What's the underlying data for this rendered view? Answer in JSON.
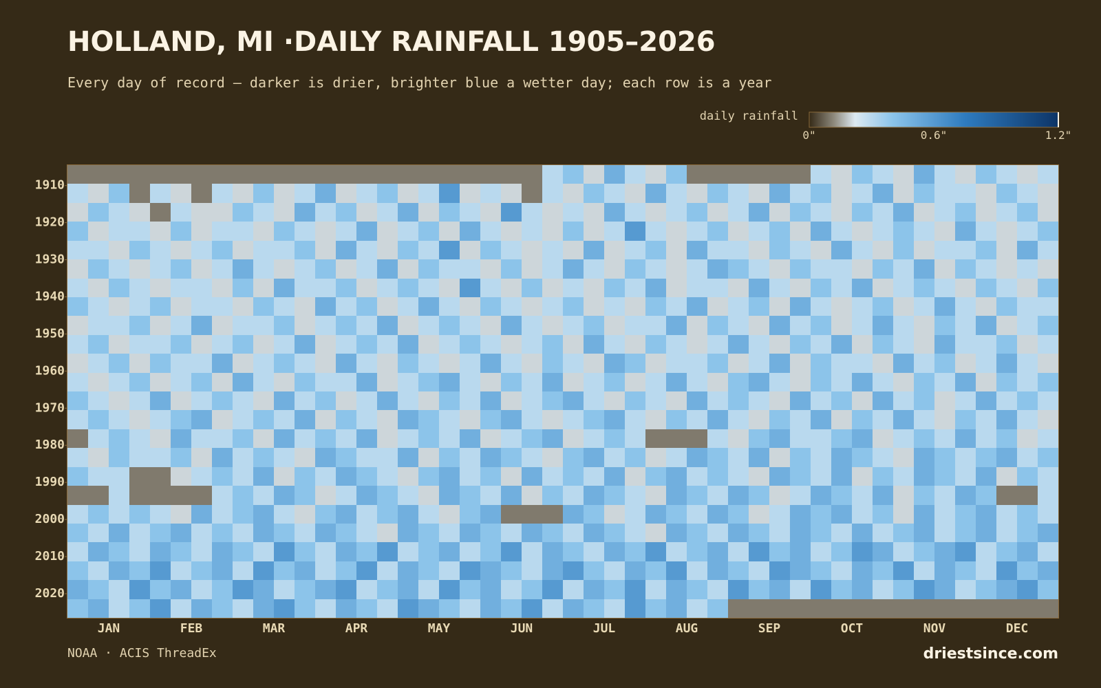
{
  "chart_data": {
    "type": "heatmap",
    "title": "HOLLAND, MI ·DAILY RAINFALL 1905–2026",
    "subtitle": "Every day of record — darker is drier, brighter blue a wetter day; each row is a year",
    "legend_title": "daily rainfall",
    "source": "NOAA · ACIS ThreadEx",
    "credit": "driestsince.com",
    "categories": [
      "JAN",
      "FEB",
      "MAR",
      "APR",
      "MAY",
      "JUN",
      "JUL",
      "AUG",
      "SEP",
      "OCT",
      "NOV",
      "DEC"
    ],
    "ylim": [
      1904.5,
      2026.5
    ],
    "y_inverted": true,
    "yticks": [
      1910,
      1920,
      1930,
      1940,
      1950,
      1960,
      1970,
      1980,
      1990,
      2000,
      2010,
      2020
    ],
    "zlim": [
      0,
      1.2
    ],
    "zticks": [
      {
        "value": 0,
        "label": "0\""
      },
      {
        "value": 0.6,
        "label": "0.6\""
      },
      {
        "value": 1.2,
        "label": "1.2\""
      }
    ],
    "colorscale": [
      [
        0,
        "#352a17"
      ],
      [
        0.12,
        "#8f8a7e"
      ],
      [
        0.22,
        "#dde9f1"
      ],
      [
        0.4,
        "#8cc4ea"
      ],
      [
        0.75,
        "#2e7bbf"
      ],
      [
        1.2,
        "#0d3466"
      ]
    ],
    "background": "#352a17",
    "z": [
      [
        0.1,
        0.1,
        0.1,
        0.1,
        0.1,
        0.1,
        0.1,
        0.1,
        0.1,
        0.1,
        0.1,
        0.1,
        0.1,
        0.1,
        0.1,
        0.1,
        0.1,
        0.1,
        0.1,
        0.1,
        0.1,
        0.1,
        0.1,
        0.3,
        0.4,
        0.2,
        0.5,
        0.3,
        0.2,
        0.4,
        0.1,
        0.1,
        0.1,
        0.1,
        0.1,
        0.1,
        0.3,
        0.2,
        0.4,
        0.3,
        0.2,
        0.5,
        0.3,
        0.2,
        0.4,
        0.3,
        0.2,
        0.3
      ],
      [
        0.3,
        0.2,
        0.4,
        0.1,
        0.3,
        0.2,
        0.1,
        0.3,
        0.2,
        0.4,
        0.2,
        0.3,
        0.5,
        0.2,
        0.3,
        0.4,
        0.2,
        0.3,
        0.6,
        0.2,
        0.3,
        0.2,
        0.1,
        0.3,
        0.2,
        0.4,
        0.3,
        0.2,
        0.5,
        0.3,
        0.2,
        0.4,
        0.3,
        0.2,
        0.5,
        0.3,
        0.4,
        0.2,
        0.3,
        0.5,
        0.2,
        0.4,
        0.3,
        0.3,
        0.2,
        0.4,
        0.3,
        0.2
      ],
      [
        0.2,
        0.4,
        0.3,
        0.2,
        0.1,
        0.3,
        0.2,
        0.2,
        0.4,
        0.3,
        0.2,
        0.5,
        0.3,
        0.4,
        0.2,
        0.3,
        0.5,
        0.2,
        0.4,
        0.3,
        0.2,
        0.6,
        0.3,
        0.2,
        0.3,
        0.2,
        0.5,
        0.3,
        0.2,
        0.3,
        0.4,
        0.2,
        0.3,
        0.5,
        0.2,
        0.4,
        0.3,
        0.2,
        0.4,
        0.3,
        0.5,
        0.2,
        0.3,
        0.4,
        0.2,
        0.3,
        0.4,
        0.2
      ],
      [
        0.4,
        0.2,
        0.3,
        0.3,
        0.2,
        0.4,
        0.2,
        0.3,
        0.3,
        0.2,
        0.4,
        0.3,
        0.2,
        0.3,
        0.5,
        0.2,
        0.3,
        0.4,
        0.2,
        0.5,
        0.3,
        0.2,
        0.3,
        0.2,
        0.4,
        0.2,
        0.3,
        0.6,
        0.3,
        0.2,
        0.3,
        0.4,
        0.2,
        0.3,
        0.4,
        0.2,
        0.5,
        0.3,
        0.2,
        0.3,
        0.4,
        0.3,
        0.2,
        0.5,
        0.3,
        0.2,
        0.3,
        0.4
      ],
      [
        0.3,
        0.3,
        0.2,
        0.4,
        0.3,
        0.2,
        0.3,
        0.4,
        0.2,
        0.3,
        0.3,
        0.4,
        0.2,
        0.5,
        0.3,
        0.2,
        0.4,
        0.3,
        0.6,
        0.2,
        0.4,
        0.3,
        0.2,
        0.3,
        0.2,
        0.5,
        0.2,
        0.3,
        0.4,
        0.2,
        0.5,
        0.3,
        0.3,
        0.2,
        0.4,
        0.3,
        0.2,
        0.5,
        0.3,
        0.2,
        0.4,
        0.2,
        0.3,
        0.3,
        0.4,
        0.2,
        0.5,
        0.3
      ],
      [
        0.2,
        0.4,
        0.3,
        0.2,
        0.3,
        0.4,
        0.2,
        0.3,
        0.5,
        0.3,
        0.2,
        0.3,
        0.4,
        0.2,
        0.3,
        0.5,
        0.2,
        0.4,
        0.3,
        0.3,
        0.2,
        0.4,
        0.2,
        0.3,
        0.5,
        0.3,
        0.2,
        0.4,
        0.3,
        0.2,
        0.3,
        0.5,
        0.4,
        0.3,
        0.2,
        0.4,
        0.3,
        0.3,
        0.2,
        0.4,
        0.3,
        0.5,
        0.2,
        0.4,
        0.3,
        0.2,
        0.3,
        0.2
      ],
      [
        0.3,
        0.2,
        0.4,
        0.3,
        0.2,
        0.3,
        0.3,
        0.2,
        0.4,
        0.2,
        0.5,
        0.3,
        0.3,
        0.4,
        0.2,
        0.3,
        0.4,
        0.3,
        0.2,
        0.6,
        0.3,
        0.2,
        0.4,
        0.2,
        0.3,
        0.2,
        0.4,
        0.3,
        0.5,
        0.2,
        0.3,
        0.3,
        0.2,
        0.5,
        0.3,
        0.2,
        0.4,
        0.3,
        0.5,
        0.2,
        0.3,
        0.4,
        0.3,
        0.2,
        0.4,
        0.3,
        0.2,
        0.4
      ],
      [
        0.4,
        0.3,
        0.2,
        0.3,
        0.4,
        0.2,
        0.3,
        0.3,
        0.2,
        0.4,
        0.3,
        0.2,
        0.5,
        0.3,
        0.4,
        0.2,
        0.3,
        0.5,
        0.3,
        0.2,
        0.4,
        0.3,
        0.2,
        0.3,
        0.4,
        0.2,
        0.3,
        0.2,
        0.4,
        0.3,
        0.5,
        0.2,
        0.3,
        0.4,
        0.2,
        0.5,
        0.3,
        0.2,
        0.3,
        0.4,
        0.2,
        0.3,
        0.5,
        0.3,
        0.2,
        0.4,
        0.3,
        0.3
      ],
      [
        0.2,
        0.3,
        0.3,
        0.4,
        0.2,
        0.3,
        0.5,
        0.2,
        0.3,
        0.3,
        0.4,
        0.2,
        0.3,
        0.4,
        0.3,
        0.5,
        0.2,
        0.3,
        0.4,
        0.3,
        0.2,
        0.5,
        0.3,
        0.2,
        0.3,
        0.4,
        0.2,
        0.3,
        0.3,
        0.5,
        0.2,
        0.4,
        0.3,
        0.2,
        0.5,
        0.3,
        0.4,
        0.2,
        0.3,
        0.5,
        0.3,
        0.2,
        0.4,
        0.3,
        0.5,
        0.2,
        0.3,
        0.4
      ],
      [
        0.3,
        0.4,
        0.2,
        0.3,
        0.3,
        0.4,
        0.2,
        0.3,
        0.4,
        0.2,
        0.3,
        0.5,
        0.2,
        0.3,
        0.4,
        0.3,
        0.5,
        0.2,
        0.3,
        0.4,
        0.3,
        0.2,
        0.3,
        0.4,
        0.2,
        0.5,
        0.3,
        0.2,
        0.4,
        0.3,
        0.2,
        0.3,
        0.5,
        0.3,
        0.2,
        0.4,
        0.3,
        0.5,
        0.2,
        0.4,
        0.3,
        0.2,
        0.5,
        0.3,
        0.3,
        0.4,
        0.2,
        0.3
      ],
      [
        0.2,
        0.3,
        0.4,
        0.2,
        0.4,
        0.3,
        0.3,
        0.5,
        0.2,
        0.3,
        0.4,
        0.3,
        0.2,
        0.5,
        0.3,
        0.2,
        0.4,
        0.3,
        0.2,
        0.3,
        0.5,
        0.3,
        0.2,
        0.4,
        0.3,
        0.2,
        0.5,
        0.4,
        0.2,
        0.3,
        0.3,
        0.4,
        0.2,
        0.3,
        0.5,
        0.2,
        0.4,
        0.3,
        0.3,
        0.2,
        0.5,
        0.3,
        0.4,
        0.2,
        0.3,
        0.5,
        0.3,
        0.2
      ],
      [
        0.3,
        0.2,
        0.3,
        0.4,
        0.2,
        0.3,
        0.4,
        0.2,
        0.5,
        0.3,
        0.2,
        0.4,
        0.3,
        0.3,
        0.5,
        0.2,
        0.3,
        0.4,
        0.5,
        0.3,
        0.2,
        0.4,
        0.3,
        0.5,
        0.2,
        0.3,
        0.4,
        0.2,
        0.3,
        0.5,
        0.3,
        0.2,
        0.4,
        0.5,
        0.3,
        0.2,
        0.4,
        0.3,
        0.5,
        0.3,
        0.2,
        0.4,
        0.3,
        0.5,
        0.2,
        0.4,
        0.3,
        0.4
      ],
      [
        0.4,
        0.3,
        0.2,
        0.3,
        0.5,
        0.2,
        0.3,
        0.4,
        0.3,
        0.2,
        0.5,
        0.3,
        0.4,
        0.2,
        0.3,
        0.5,
        0.3,
        0.2,
        0.4,
        0.3,
        0.5,
        0.2,
        0.3,
        0.4,
        0.5,
        0.3,
        0.2,
        0.4,
        0.3,
        0.2,
        0.5,
        0.3,
        0.4,
        0.3,
        0.2,
        0.5,
        0.3,
        0.4,
        0.2,
        0.5,
        0.3,
        0.4,
        0.2,
        0.3,
        0.5,
        0.3,
        0.4,
        0.3
      ],
      [
        0.3,
        0.4,
        0.3,
        0.2,
        0.3,
        0.4,
        0.5,
        0.2,
        0.3,
        0.4,
        0.3,
        0.5,
        0.2,
        0.4,
        0.3,
        0.2,
        0.5,
        0.4,
        0.3,
        0.2,
        0.4,
        0.5,
        0.3,
        0.2,
        0.3,
        0.4,
        0.5,
        0.3,
        0.2,
        0.4,
        0.3,
        0.5,
        0.3,
        0.2,
        0.4,
        0.3,
        0.5,
        0.2,
        0.4,
        0.3,
        0.5,
        0.3,
        0.2,
        0.4,
        0.3,
        0.5,
        0.3,
        0.2
      ],
      [
        0.1,
        0.3,
        0.4,
        0.3,
        0.2,
        0.5,
        0.3,
        0.3,
        0.4,
        0.2,
        0.5,
        0.3,
        0.4,
        0.3,
        0.5,
        0.2,
        0.3,
        0.4,
        0.3,
        0.5,
        0.2,
        0.3,
        0.4,
        0.5,
        0.2,
        0.3,
        0.4,
        0.3,
        0.1,
        0.1,
        0.1,
        0.3,
        0.2,
        0.4,
        0.5,
        0.3,
        0.3,
        0.4,
        0.5,
        0.2,
        0.3,
        0.4,
        0.3,
        0.5,
        0.3,
        0.4,
        0.2,
        0.3
      ],
      [
        0.3,
        0.2,
        0.4,
        0.3,
        0.3,
        0.4,
        0.2,
        0.5,
        0.3,
        0.4,
        0.3,
        0.2,
        0.5,
        0.4,
        0.3,
        0.3,
        0.5,
        0.2,
        0.4,
        0.3,
        0.5,
        0.4,
        0.3,
        0.2,
        0.4,
        0.5,
        0.3,
        0.4,
        0.2,
        0.3,
        0.5,
        0.4,
        0.3,
        0.5,
        0.2,
        0.4,
        0.3,
        0.5,
        0.4,
        0.3,
        0.2,
        0.5,
        0.4,
        0.3,
        0.4,
        0.5,
        0.3,
        0.4
      ],
      [
        0.4,
        0.3,
        0.3,
        0.1,
        0.1,
        0.2,
        0.3,
        0.4,
        0.3,
        0.5,
        0.2,
        0.4,
        0.3,
        0.5,
        0.4,
        0.3,
        0.2,
        0.4,
        0.5,
        0.3,
        0.4,
        0.2,
        0.5,
        0.3,
        0.4,
        0.3,
        0.5,
        0.2,
        0.4,
        0.5,
        0.3,
        0.4,
        0.3,
        0.2,
        0.5,
        0.4,
        0.3,
        0.5,
        0.2,
        0.4,
        0.3,
        0.5,
        0.4,
        0.3,
        0.5,
        0.2,
        0.4,
        0.3
      ],
      [
        0.1,
        0.1,
        0.3,
        0.1,
        0.1,
        0.1,
        0.1,
        0.3,
        0.4,
        0.3,
        0.5,
        0.4,
        0.2,
        0.3,
        0.5,
        0.4,
        0.3,
        0.2,
        0.5,
        0.4,
        0.3,
        0.5,
        0.2,
        0.4,
        0.3,
        0.5,
        0.4,
        0.3,
        0.2,
        0.5,
        0.4,
        0.3,
        0.5,
        0.4,
        0.2,
        0.3,
        0.5,
        0.4,
        0.3,
        0.5,
        0.2,
        0.4,
        0.3,
        0.5,
        0.4,
        0.1,
        0.1,
        0.3
      ],
      [
        0.3,
        0.4,
        0.3,
        0.4,
        0.3,
        0.2,
        0.5,
        0.3,
        0.4,
        0.5,
        0.3,
        0.2,
        0.4,
        0.5,
        0.3,
        0.4,
        0.5,
        0.3,
        0.2,
        0.4,
        0.5,
        0.1,
        0.1,
        0.1,
        0.5,
        0.4,
        0.2,
        0.3,
        0.5,
        0.4,
        0.3,
        0.5,
        0.4,
        0.2,
        0.3,
        0.5,
        0.4,
        0.5,
        0.3,
        0.4,
        0.2,
        0.5,
        0.3,
        0.4,
        0.5,
        0.3,
        0.4,
        0.3
      ],
      [
        0.4,
        0.3,
        0.5,
        0.3,
        0.4,
        0.5,
        0.3,
        0.4,
        0.3,
        0.5,
        0.4,
        0.3,
        0.5,
        0.4,
        0.3,
        0.2,
        0.5,
        0.4,
        0.3,
        0.5,
        0.4,
        0.3,
        0.5,
        0.4,
        0.3,
        0.5,
        0.4,
        0.3,
        0.2,
        0.5,
        0.4,
        0.3,
        0.5,
        0.4,
        0.3,
        0.5,
        0.4,
        0.3,
        0.5,
        0.3,
        0.4,
        0.5,
        0.3,
        0.4,
        0.5,
        0.3,
        0.4,
        0.5
      ],
      [
        0.3,
        0.5,
        0.4,
        0.3,
        0.5,
        0.4,
        0.3,
        0.5,
        0.4,
        0.3,
        0.6,
        0.4,
        0.3,
        0.5,
        0.4,
        0.6,
        0.3,
        0.4,
        0.5,
        0.3,
        0.4,
        0.6,
        0.3,
        0.5,
        0.4,
        0.3,
        0.5,
        0.4,
        0.6,
        0.3,
        0.4,
        0.5,
        0.3,
        0.6,
        0.4,
        0.5,
        0.3,
        0.4,
        0.6,
        0.5,
        0.3,
        0.4,
        0.5,
        0.6,
        0.3,
        0.4,
        0.5,
        0.3
      ],
      [
        0.4,
        0.3,
        0.5,
        0.4,
        0.6,
        0.3,
        0.4,
        0.5,
        0.3,
        0.6,
        0.4,
        0.5,
        0.3,
        0.4,
        0.6,
        0.3,
        0.5,
        0.4,
        0.3,
        0.6,
        0.5,
        0.4,
        0.3,
        0.5,
        0.6,
        0.4,
        0.3,
        0.5,
        0.4,
        0.6,
        0.3,
        0.5,
        0.4,
        0.3,
        0.6,
        0.5,
        0.4,
        0.3,
        0.5,
        0.4,
        0.6,
        0.3,
        0.5,
        0.4,
        0.3,
        0.6,
        0.4,
        0.5
      ],
      [
        0.5,
        0.4,
        0.3,
        0.6,
        0.4,
        0.5,
        0.3,
        0.4,
        0.6,
        0.5,
        0.3,
        0.4,
        0.5,
        0.6,
        0.3,
        0.4,
        0.5,
        0.3,
        0.6,
        0.4,
        0.5,
        0.3,
        0.4,
        0.6,
        0.3,
        0.5,
        0.4,
        0.6,
        0.3,
        0.5,
        0.4,
        0.3,
        0.6,
        0.4,
        0.5,
        0.3,
        0.6,
        0.4,
        0.5,
        0.3,
        0.4,
        0.6,
        0.5,
        0.3,
        0.4,
        0.5,
        0.6,
        0.4
      ],
      [
        0.4,
        0.5,
        0.3,
        0.4,
        0.6,
        0.3,
        0.5,
        0.4,
        0.3,
        0.5,
        0.6,
        0.4,
        0.3,
        0.5,
        0.4,
        0.3,
        0.6,
        0.5,
        0.4,
        0.3,
        0.5,
        0.4,
        0.6,
        0.3,
        0.5,
        0.4,
        0.3,
        0.6,
        0.4,
        0.5,
        0.3,
        0.4,
        0.1,
        0.1,
        0.1,
        0.1,
        0.1,
        0.1,
        0.1,
        0.1,
        0.1,
        0.1,
        0.1,
        0.1,
        0.1,
        0.1,
        0.1,
        0.1
      ]
    ]
  }
}
